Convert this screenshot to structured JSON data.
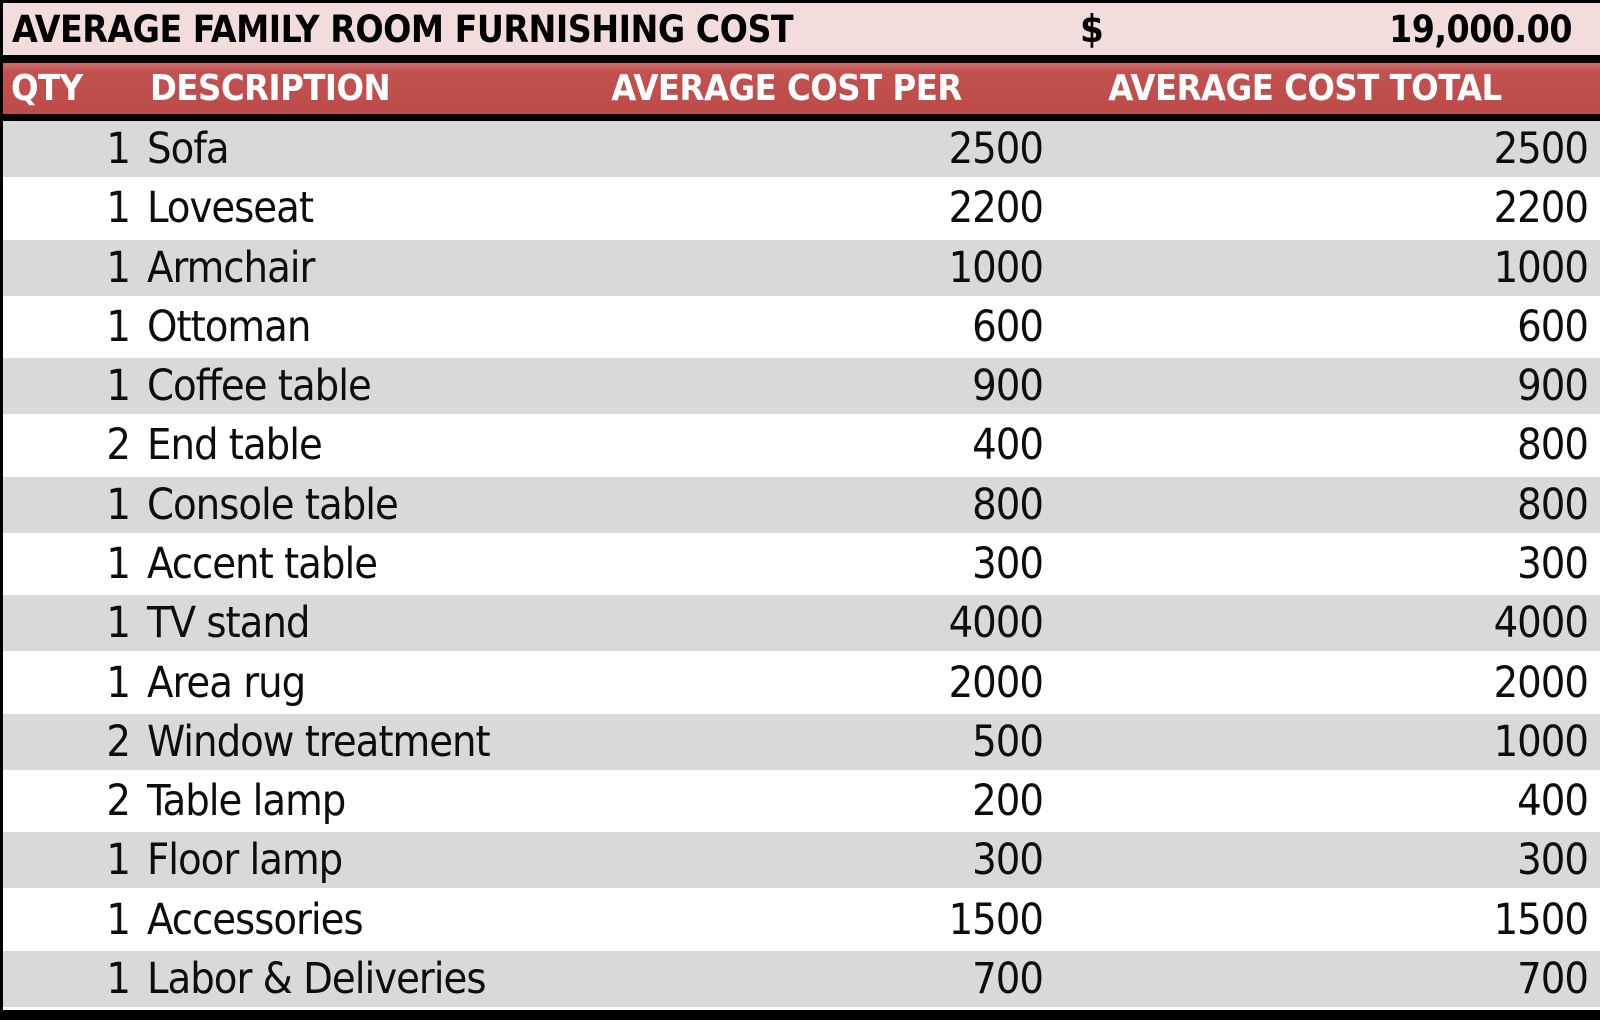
{
  "title": {
    "label": "AVERAGE FAMILY ROOM FURNISHING COST",
    "currency_symbol": "$",
    "total": "19,000.00"
  },
  "columns": [
    "QTY",
    "DESCRIPTION",
    "AVERAGE COST PER",
    "AVERAGE COST TOTAL"
  ],
  "rows": [
    {
      "qty": "1",
      "description": "Sofa",
      "cost_per": "2500",
      "cost_total": "2500"
    },
    {
      "qty": "1",
      "description": "Loveseat",
      "cost_per": "2200",
      "cost_total": "2200"
    },
    {
      "qty": "1",
      "description": "Armchair",
      "cost_per": "1000",
      "cost_total": "1000"
    },
    {
      "qty": "1",
      "description": "Ottoman",
      "cost_per": "600",
      "cost_total": "600"
    },
    {
      "qty": "1",
      "description": "Coffee table",
      "cost_per": "900",
      "cost_total": "900"
    },
    {
      "qty": "2",
      "description": "End table",
      "cost_per": "400",
      "cost_total": "800"
    },
    {
      "qty": "1",
      "description": "Console table",
      "cost_per": "800",
      "cost_total": "800"
    },
    {
      "qty": "1",
      "description": "Accent table",
      "cost_per": "300",
      "cost_total": "300"
    },
    {
      "qty": "1",
      "description": "TV stand",
      "cost_per": "4000",
      "cost_total": "4000"
    },
    {
      "qty": "1",
      "description": "Area rug",
      "cost_per": "2000",
      "cost_total": "2000"
    },
    {
      "qty": "2",
      "description": "Window treatment",
      "cost_per": "500",
      "cost_total": "1000"
    },
    {
      "qty": "2",
      "description": "Table lamp",
      "cost_per": "200",
      "cost_total": "400"
    },
    {
      "qty": "1",
      "description": "Floor lamp",
      "cost_per": "300",
      "cost_total": "300"
    },
    {
      "qty": "1",
      "description": "Accessories",
      "cost_per": "1500",
      "cost_total": "1500"
    },
    {
      "qty": "1",
      "description": "Labor & Deliveries",
      "cost_per": "700",
      "cost_total": "700"
    }
  ],
  "colors": {
    "title_bg": "#f2dddc",
    "header_bg": "#c0504d",
    "header_text": "#ffffff",
    "stripe_gray": "#d9d9d9",
    "stripe_white": "#ffffff",
    "border": "#000000"
  }
}
